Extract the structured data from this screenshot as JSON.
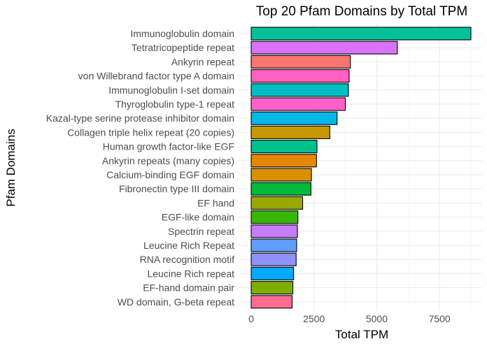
{
  "chart_data": {
    "type": "bar",
    "orientation": "horizontal",
    "title": "Top 20 Pfam Domains by Total TPM",
    "xlabel": "Total TPM",
    "ylabel": "Pfam Domains",
    "xlim": [
      0,
      8800
    ],
    "xticks": [
      0,
      2500,
      5000,
      7500
    ],
    "xtick_labels": [
      "0",
      "2500",
      "5000",
      "7500"
    ],
    "grid": true,
    "legend": "none",
    "categories": [
      "Immunoglobulin domain",
      "Tetratricopeptide repeat",
      "Ankyrin repeat",
      "von Willebrand factor type A domain",
      "Immunoglobulin I-set domain",
      "Thyroglobulin type-1 repeat",
      "Kazal-type serine protease inhibitor domain",
      "Collagen triple helix repeat (20 copies)",
      "Human growth factor-like EGF",
      "Ankyrin repeats (many copies)",
      "Calcium-binding EGF domain",
      "Fibronectin type III domain",
      "EF hand",
      "EGF-like domain",
      "Spectrin repeat",
      "Leucine Rich Repeat",
      "RNA recognition motif",
      "Leucine Rich repeat",
      "EF-hand domain pair",
      "WD domain, G-beta repeat"
    ],
    "values": [
      8750,
      5820,
      3950,
      3900,
      3870,
      3750,
      3420,
      3130,
      2620,
      2600,
      2400,
      2380,
      2050,
      1860,
      1840,
      1810,
      1790,
      1690,
      1660,
      1630
    ],
    "colors": [
      "#00C19A",
      "#DB72FB",
      "#F8766D",
      "#FF61C3",
      "#00BFC4",
      "#FF61CC",
      "#00B8E7",
      "#C49A00",
      "#00C08B",
      "#E58700",
      "#D89000",
      "#00BA38",
      "#99A800",
      "#39B600",
      "#C77CFF",
      "#619CFF",
      "#8F91FF",
      "#00A9FF",
      "#7CAE00",
      "#FF6C91"
    ]
  }
}
